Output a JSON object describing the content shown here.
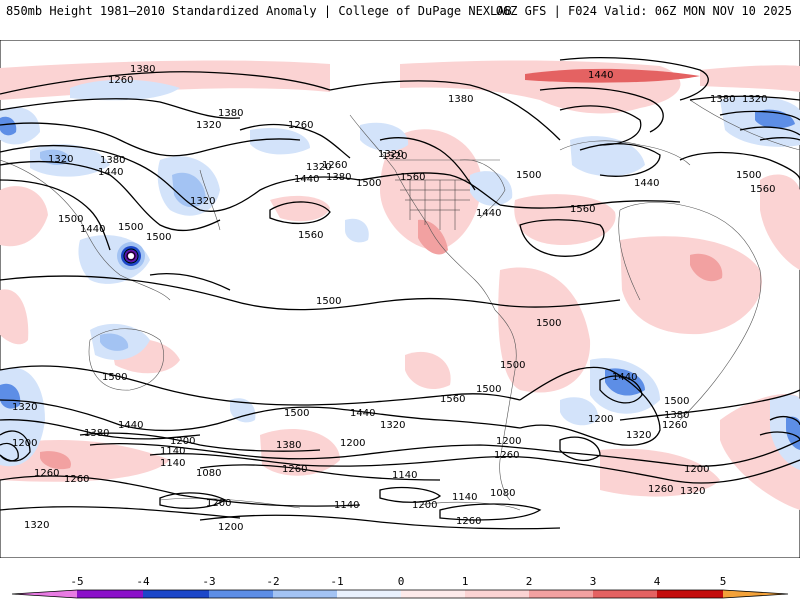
{
  "header": {
    "left": "850mb Height 1981–2010 Standardized Anomaly | College of DuPage NEXLAB",
    "right": "06Z GFS | F024 Valid: 06Z MON NOV 10 2025"
  },
  "colors": {
    "pos1": "#fbd3d3",
    "pos2": "#f2a1a1",
    "pos3": "#e46262",
    "pos4": "#d81d1d",
    "neg1": "#d3e3fa",
    "neg2": "#a3c3f3",
    "neg3": "#5d8ee6",
    "neg4": "#1c47c9",
    "neg5": "#6a0aa6"
  },
  "contour_labels": [
    "1380",
    "1260",
    "1320",
    "1380",
    "1260",
    "1320",
    "1380",
    "1440",
    "1320",
    "1500",
    "1440",
    "1320",
    "1500",
    "1500",
    "1560",
    "1440",
    "1320",
    "1380",
    "1260",
    "1380",
    "1500",
    "1320",
    "1560",
    "1500",
    "1440",
    "1560",
    "1440",
    "1380",
    "1320",
    "1440",
    "1500",
    "1560",
    "1500",
    "1500",
    "1500",
    "1500",
    "1440",
    "1500",
    "1500",
    "1560",
    "1320",
    "1380",
    "1440",
    "1260",
    "1200",
    "1140",
    "1260",
    "1380",
    "1200",
    "1200",
    "1140",
    "1080",
    "1260",
    "1140",
    "1200",
    "1200",
    "1140",
    "1080",
    "1200",
    "1260",
    "1200",
    "1320",
    "1260",
    "1200",
    "1320",
    "1260",
    "1320",
    "1200",
    "1140",
    "1320",
    "1260",
    "1440",
    "1500",
    "1380"
  ],
  "colorbar": {
    "labels": [
      "-5",
      "-4",
      "-3",
      "-2",
      "-1",
      "0",
      "1",
      "2",
      "3",
      "4",
      "5"
    ]
  }
}
